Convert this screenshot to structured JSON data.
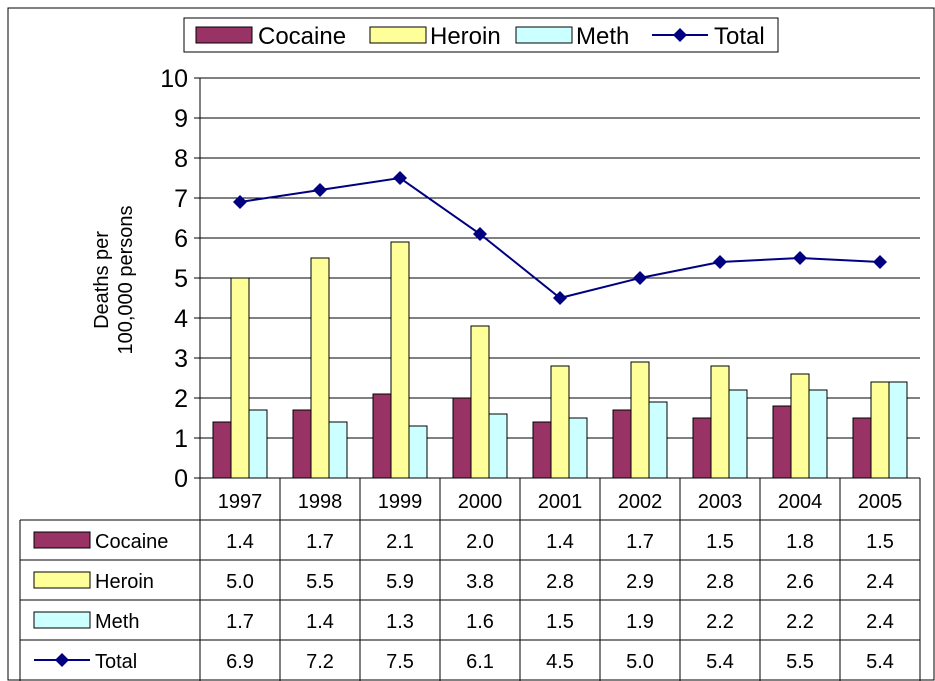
{
  "chart_data": {
    "type": "bar",
    "categories": [
      "1997",
      "1998",
      "1999",
      "2000",
      "2001",
      "2002",
      "2003",
      "2004",
      "2005"
    ],
    "series": [
      {
        "name": "Cocaine",
        "type": "bar",
        "color": "#993366",
        "values": [
          1.4,
          1.7,
          2.1,
          2.0,
          1.4,
          1.7,
          1.5,
          1.8,
          1.5
        ],
        "table_values": [
          "1.4",
          "1.7",
          "2.1",
          "2.0",
          "1.4",
          "1.7",
          "1.5",
          "1.8",
          "1.5"
        ]
      },
      {
        "name": "Heroin",
        "type": "bar",
        "color": "#FFFF99",
        "values": [
          5.0,
          5.5,
          5.9,
          3.8,
          2.8,
          2.9,
          2.8,
          2.6,
          2.4
        ],
        "table_values": [
          "5.0",
          "5.5",
          "5.9",
          "3.8",
          "2.8",
          "2.9",
          "2.8",
          "2.6",
          "2.4"
        ]
      },
      {
        "name": "Meth",
        "type": "bar",
        "color": "#CCFFFF",
        "values": [
          1.7,
          1.4,
          1.3,
          1.6,
          1.5,
          1.9,
          2.2,
          2.2,
          2.4
        ],
        "table_values": [
          "1.7",
          "1.4",
          "1.3",
          "1.6",
          "1.5",
          "1.9",
          "2.2",
          "2.2",
          "2.4"
        ]
      },
      {
        "name": "Total",
        "type": "line",
        "color": "#000080",
        "values": [
          6.9,
          7.2,
          7.5,
          6.1,
          4.5,
          5.0,
          5.4,
          5.5,
          5.4
        ],
        "table_values": [
          "6.9",
          "7.2",
          "7.5",
          "6.1",
          "4.5",
          "5.0",
          "5.4",
          "5.5",
          "5.4"
        ]
      }
    ],
    "ylabel": [
      "Deaths per",
      "100,000 persons"
    ],
    "ylim": [
      0,
      10
    ],
    "yticks": [
      "0",
      "1",
      "2",
      "3",
      "4",
      "5",
      "6",
      "7",
      "8",
      "9",
      "10"
    ],
    "grid": true,
    "legend_position": "top",
    "data_table": true
  }
}
